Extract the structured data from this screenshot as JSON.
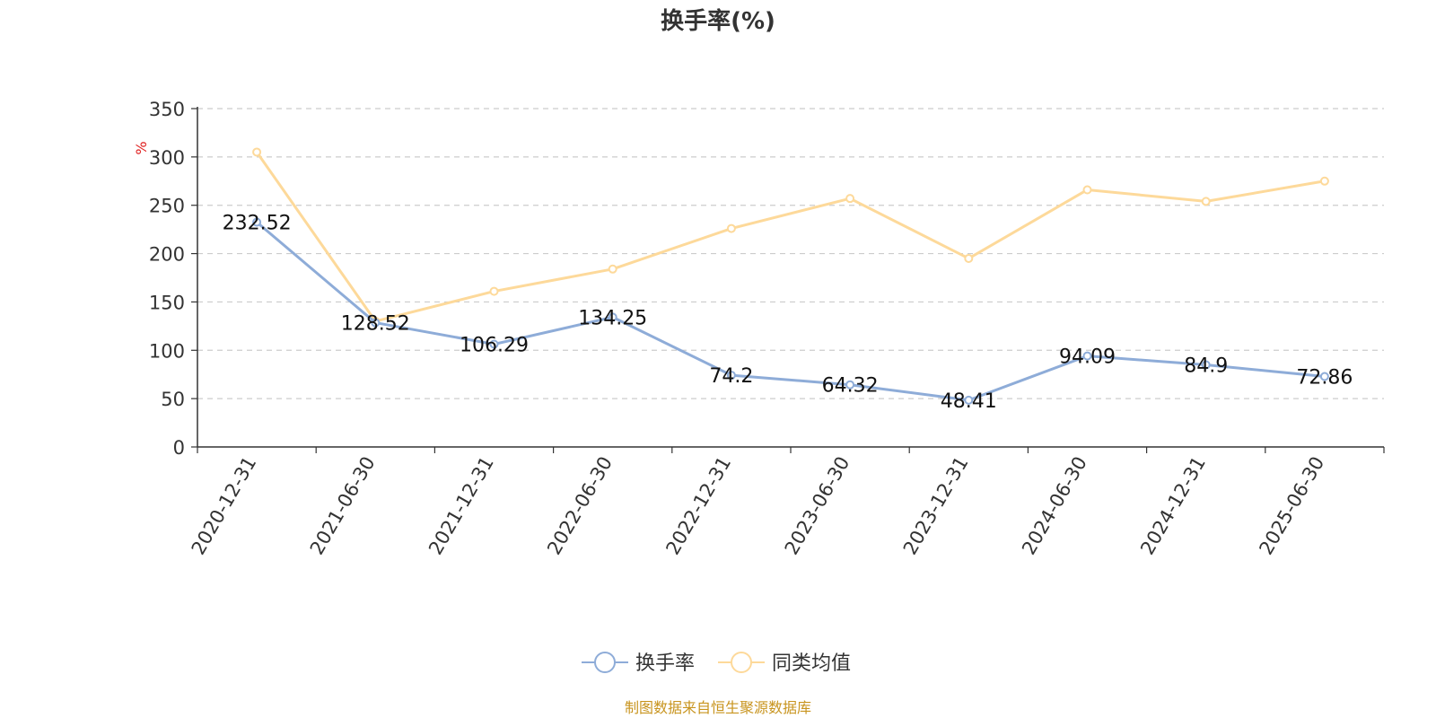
{
  "chart_data": {
    "type": "line",
    "title": "换手率(%)",
    "ylabel": "%",
    "xlabel": "",
    "ylim": [
      0,
      350
    ],
    "yticks": [
      0,
      50,
      100,
      150,
      200,
      250,
      300,
      350
    ],
    "grid": true,
    "categories": [
      "2020-12-31",
      "2021-06-30",
      "2021-12-31",
      "2022-06-30",
      "2022-12-31",
      "2023-06-30",
      "2023-12-31",
      "2024-06-30",
      "2024-12-31",
      "2025-06-30"
    ],
    "series": [
      {
        "name": "换手率",
        "color": "#8eacd8",
        "values": [
          232.52,
          128.52,
          106.29,
          134.25,
          74.2,
          64.32,
          48.41,
          94.09,
          84.9,
          72.86
        ],
        "data_labels": [
          "232.52",
          "128.52",
          "106.29",
          "134.25",
          "74.2",
          "64.32",
          "48.41",
          "94.09",
          "84.9",
          "72.86"
        ]
      },
      {
        "name": "同类均值",
        "color": "#fdd99a",
        "values": [
          305,
          130,
          161,
          184,
          226,
          257,
          195,
          266,
          254,
          275
        ]
      }
    ],
    "legend_position": "bottom-center"
  },
  "source_note": "制图数据来自恒生聚源数据库"
}
